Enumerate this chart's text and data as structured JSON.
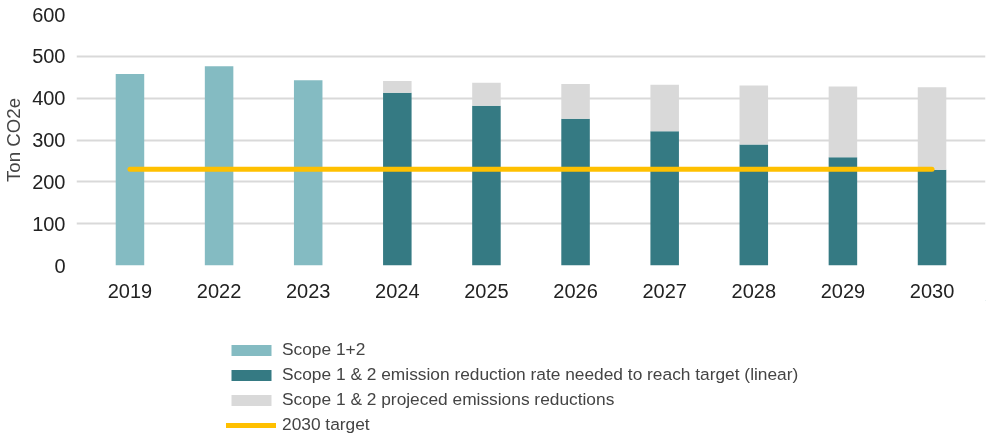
{
  "chart_data": {
    "type": "bar",
    "stacked": true,
    "ylabel": "Ton CO2e",
    "categories": [
      "2019",
      "2022",
      "2023",
      "2024",
      "2025",
      "2026",
      "2027",
      "2028",
      "2029",
      "2030"
    ],
    "series": [
      {
        "name": "Scope 1+2",
        "color": "#84bbc2",
        "values": [
          458,
          476,
          443,
          null,
          null,
          null,
          null,
          null,
          null,
          null
        ]
      },
      {
        "name": "Scope 1 & 2 emission reduction rate needed to reach target (linear)",
        "color": "#357a83",
        "values": [
          null,
          null,
          null,
          413,
          382,
          351,
          321,
          289,
          259,
          229
        ]
      },
      {
        "name": "Scope 1 & 2 projeced emissions reductions",
        "color": "#d9d9d9",
        "values": [
          null,
          null,
          null,
          28,
          55,
          83,
          111,
          141,
          169,
          197
        ]
      },
      {
        "name": "2030 target",
        "type": "line",
        "color": "#ffc000",
        "values": [
          230,
          230,
          230,
          230,
          230,
          230,
          230,
          230,
          230,
          230
        ]
      }
    ],
    "ylim": [
      0,
      600
    ],
    "yticks": [
      0,
      100,
      200,
      300,
      400,
      500,
      600
    ],
    "grid": "y",
    "legend": "bottom"
  }
}
